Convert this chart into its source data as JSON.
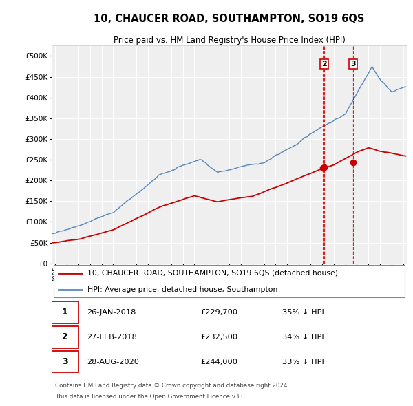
{
  "title": "10, CHAUCER ROAD, SOUTHAMPTON, SO19 6QS",
  "subtitle": "Price paid vs. HM Land Registry's House Price Index (HPI)",
  "legend_house": "10, CHAUCER ROAD, SOUTHAMPTON, SO19 6QS (detached house)",
  "legend_hpi": "HPI: Average price, detached house, Southampton",
  "footer1": "Contains HM Land Registry data © Crown copyright and database right 2024.",
  "footer2": "This data is licensed under the Open Government Licence v3.0.",
  "transactions": [
    {
      "num": 1,
      "date": "26-JAN-2018",
      "price": "£229,700",
      "hpi": "35% ↓ HPI",
      "show_top_label": false
    },
    {
      "num": 2,
      "date": "27-FEB-2018",
      "price": "£232,500",
      "hpi": "34% ↓ HPI",
      "show_top_label": true
    },
    {
      "num": 3,
      "date": "28-AUG-2020",
      "price": "£244,000",
      "hpi": "33% ↓ HPI",
      "show_top_label": true
    }
  ],
  "marker_dates": [
    2018.065,
    2018.16,
    2020.66
  ],
  "marker_prices": [
    229700,
    232500,
    244000
  ],
  "vline_dates": [
    2018.065,
    2018.16,
    2020.66
  ],
  "background_color": "#ffffff",
  "plot_bg_color": "#efefef",
  "grid_color": "#ffffff",
  "house_line_color": "#cc0000",
  "hpi_line_color": "#5588bb",
  "marker_color": "#cc0000",
  "vline_color": "#cc0000",
  "ylim_min": 0,
  "ylim_max": 525000,
  "xlim_start": 1994.7,
  "xlim_end": 2025.3,
  "fig_width": 6.0,
  "fig_height": 5.9,
  "dpi": 100
}
